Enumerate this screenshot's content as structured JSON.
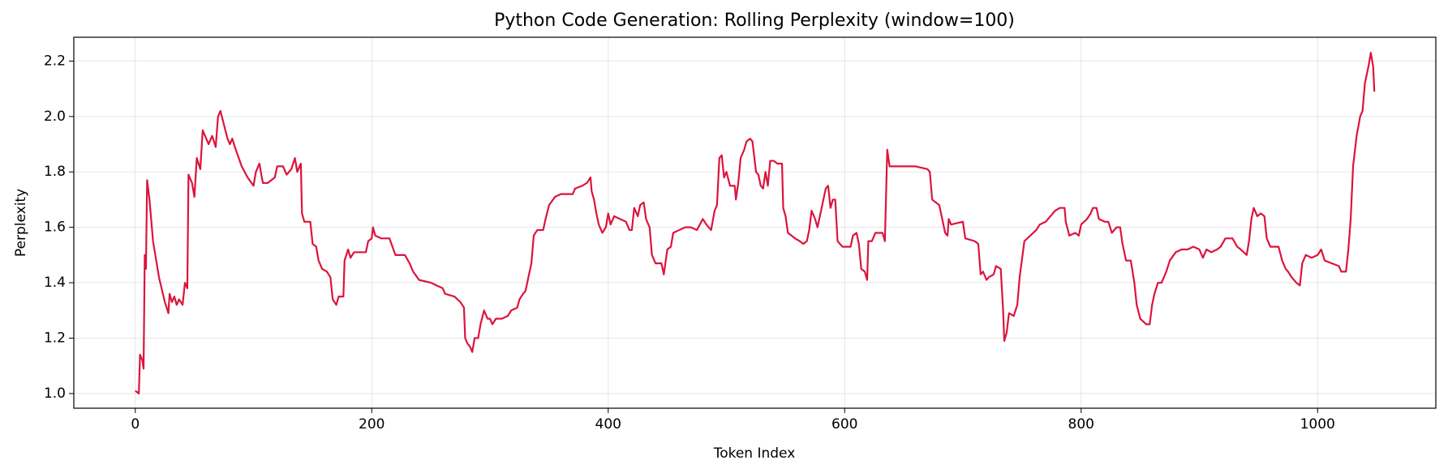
{
  "chart_data": {
    "type": "line",
    "title": "Python Code Generation: Rolling Perplexity (window=100)",
    "x_label": "Token Index",
    "y_label": "Perplexity",
    "grid": true,
    "xlim": [
      -52,
      1100
    ],
    "xticks": [
      0,
      200,
      400,
      600,
      800,
      1000
    ],
    "ylim": [
      0.947,
      2.286
    ],
    "yticks": [
      {
        "value": 1.0,
        "label": "1.0"
      },
      1.2,
      1.4,
      1.6,
      1.8,
      {
        "value": 2.0,
        "label": "2.0"
      },
      2.2
    ],
    "x": [
      0,
      3,
      4,
      6,
      7,
      8,
      9,
      10,
      12,
      15,
      20,
      25,
      28,
      29,
      31,
      33,
      35,
      37,
      40,
      42,
      44,
      45,
      48,
      50,
      52,
      55,
      57,
      60,
      62,
      65,
      68,
      70,
      72,
      75,
      78,
      80,
      82,
      85,
      90,
      95,
      100,
      102,
      105,
      107,
      108,
      112,
      118,
      120,
      125,
      128,
      132,
      135,
      137,
      140,
      141,
      143,
      148,
      150,
      153,
      155,
      158,
      162,
      165,
      167,
      170,
      172,
      176,
      177,
      180,
      182,
      185,
      190,
      195,
      197,
      200,
      201,
      203,
      208,
      215,
      220,
      228,
      232,
      235,
      240,
      250,
      255,
      260,
      262,
      270,
      275,
      278,
      279,
      281,
      283,
      285,
      287,
      290,
      292,
      295,
      298,
      300,
      302,
      305,
      310,
      315,
      318,
      323,
      325,
      328,
      330,
      332,
      335,
      337,
      340,
      345,
      347,
      350,
      355,
      360,
      370,
      372,
      378,
      382,
      385,
      386,
      388,
      390,
      392,
      395,
      398,
      400,
      402,
      405,
      410,
      415,
      418,
      420,
      422,
      425,
      427,
      430,
      432,
      435,
      437,
      440,
      445,
      447,
      450,
      453,
      455,
      460,
      465,
      470,
      475,
      480,
      483,
      487,
      490,
      492,
      494,
      496,
      498,
      500,
      503,
      507,
      508,
      510,
      512,
      515,
      517,
      520,
      522,
      525,
      527,
      529,
      531,
      533,
      535,
      537,
      540,
      543,
      547,
      548,
      550,
      552,
      555,
      558,
      562,
      565,
      568,
      570,
      572,
      575,
      577,
      580,
      582,
      584,
      586,
      588,
      590,
      592,
      594,
      598,
      605,
      607,
      610,
      612,
      614,
      617,
      619,
      620,
      623,
      626,
      632,
      634,
      636,
      638,
      645,
      660,
      670,
      672,
      674,
      680,
      685,
      687,
      688,
      690,
      700,
      702,
      710,
      713,
      715,
      717,
      720,
      722,
      726,
      728,
      732,
      734,
      735,
      737,
      739,
      743,
      746,
      748,
      752,
      757,
      762,
      765,
      770,
      774,
      778,
      782,
      786,
      787,
      790,
      795,
      798,
      800,
      805,
      808,
      810,
      813,
      815,
      820,
      823,
      826,
      830,
      833,
      835,
      838,
      842,
      845,
      847,
      850,
      855,
      858,
      860,
      862,
      865,
      868,
      872,
      875,
      880,
      885,
      890,
      895,
      900,
      903,
      906,
      910,
      915,
      918,
      922,
      928,
      932,
      935,
      940,
      942,
      944,
      946,
      949,
      952,
      955,
      957,
      960,
      967,
      970,
      973,
      975,
      978,
      982,
      985,
      987,
      990,
      995,
      1000,
      1003,
      1006,
      1012,
      1018,
      1020,
      1024,
      1026,
      1028,
      1030,
      1033,
      1036,
      1038,
      1040,
      1043,
      1045,
      1047,
      1048
    ],
    "series": [
      {
        "color": "#dc143c",
        "values": [
          1.01,
          1.0,
          1.14,
          1.12,
          1.09,
          1.5,
          1.45,
          1.77,
          1.7,
          1.55,
          1.42,
          1.33,
          1.29,
          1.36,
          1.33,
          1.35,
          1.32,
          1.34,
          1.32,
          1.4,
          1.38,
          1.79,
          1.76,
          1.71,
          1.85,
          1.81,
          1.95,
          1.92,
          1.9,
          1.93,
          1.89,
          2.0,
          2.02,
          1.97,
          1.92,
          1.9,
          1.92,
          1.88,
          1.82,
          1.78,
          1.75,
          1.8,
          1.83,
          1.78,
          1.76,
          1.76,
          1.78,
          1.82,
          1.82,
          1.79,
          1.81,
          1.85,
          1.8,
          1.83,
          1.65,
          1.62,
          1.62,
          1.54,
          1.53,
          1.48,
          1.45,
          1.44,
          1.42,
          1.34,
          1.32,
          1.35,
          1.35,
          1.48,
          1.52,
          1.49,
          1.51,
          1.51,
          1.51,
          1.55,
          1.56,
          1.6,
          1.57,
          1.56,
          1.56,
          1.5,
          1.5,
          1.47,
          1.44,
          1.41,
          1.4,
          1.39,
          1.38,
          1.36,
          1.35,
          1.33,
          1.31,
          1.2,
          1.18,
          1.17,
          1.15,
          1.2,
          1.2,
          1.25,
          1.3,
          1.27,
          1.27,
          1.25,
          1.27,
          1.27,
          1.28,
          1.3,
          1.31,
          1.34,
          1.36,
          1.37,
          1.41,
          1.47,
          1.57,
          1.59,
          1.59,
          1.63,
          1.68,
          1.71,
          1.72,
          1.72,
          1.74,
          1.75,
          1.76,
          1.78,
          1.73,
          1.7,
          1.65,
          1.61,
          1.58,
          1.6,
          1.65,
          1.61,
          1.64,
          1.63,
          1.62,
          1.59,
          1.59,
          1.67,
          1.64,
          1.68,
          1.69,
          1.63,
          1.6,
          1.5,
          1.47,
          1.47,
          1.43,
          1.52,
          1.53,
          1.58,
          1.59,
          1.6,
          1.6,
          1.59,
          1.63,
          1.61,
          1.59,
          1.66,
          1.68,
          1.85,
          1.86,
          1.78,
          1.8,
          1.75,
          1.75,
          1.7,
          1.76,
          1.85,
          1.88,
          1.91,
          1.92,
          1.91,
          1.8,
          1.79,
          1.75,
          1.74,
          1.8,
          1.75,
          1.84,
          1.84,
          1.83,
          1.83,
          1.67,
          1.64,
          1.58,
          1.57,
          1.56,
          1.55,
          1.54,
          1.55,
          1.59,
          1.66,
          1.63,
          1.6,
          1.66,
          1.7,
          1.74,
          1.75,
          1.67,
          1.7,
          1.7,
          1.55,
          1.53,
          1.53,
          1.57,
          1.58,
          1.54,
          1.45,
          1.44,
          1.41,
          1.55,
          1.55,
          1.58,
          1.58,
          1.55,
          1.88,
          1.82,
          1.82,
          1.82,
          1.81,
          1.8,
          1.7,
          1.68,
          1.58,
          1.57,
          1.63,
          1.61,
          1.62,
          1.56,
          1.55,
          1.54,
          1.43,
          1.44,
          1.41,
          1.42,
          1.43,
          1.46,
          1.45,
          1.3,
          1.19,
          1.22,
          1.29,
          1.28,
          1.32,
          1.42,
          1.55,
          1.57,
          1.59,
          1.61,
          1.62,
          1.64,
          1.66,
          1.67,
          1.67,
          1.62,
          1.57,
          1.58,
          1.57,
          1.61,
          1.63,
          1.65,
          1.67,
          1.67,
          1.63,
          1.62,
          1.62,
          1.58,
          1.6,
          1.6,
          1.54,
          1.48,
          1.48,
          1.4,
          1.32,
          1.27,
          1.25,
          1.25,
          1.32,
          1.36,
          1.4,
          1.4,
          1.44,
          1.48,
          1.51,
          1.52,
          1.52,
          1.53,
          1.52,
          1.49,
          1.52,
          1.51,
          1.52,
          1.53,
          1.56,
          1.56,
          1.53,
          1.52,
          1.5,
          1.55,
          1.63,
          1.67,
          1.64,
          1.65,
          1.64,
          1.56,
          1.53,
          1.53,
          1.48,
          1.45,
          1.44,
          1.42,
          1.4,
          1.39,
          1.47,
          1.5,
          1.49,
          1.5,
          1.52,
          1.48,
          1.47,
          1.46,
          1.44,
          1.44,
          1.52,
          1.63,
          1.82,
          1.93,
          2.0,
          2.02,
          2.12,
          2.18,
          2.23,
          2.18,
          2.09
        ]
      }
    ]
  }
}
